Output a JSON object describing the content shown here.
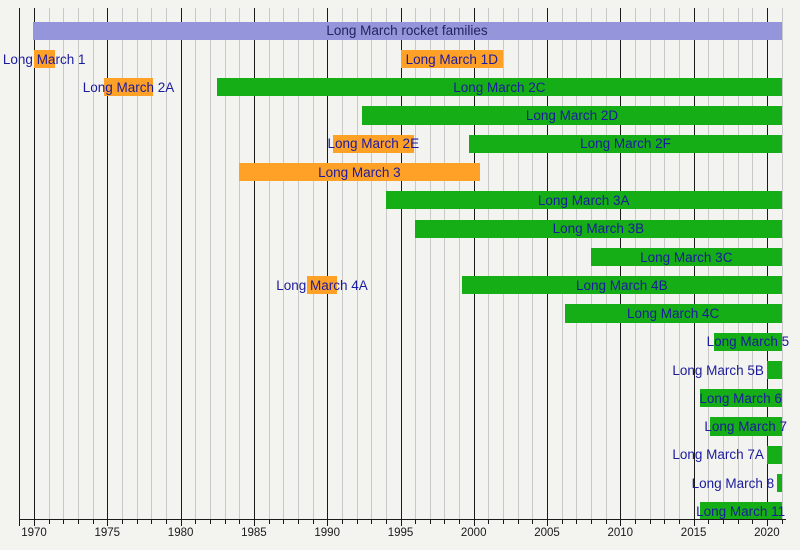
{
  "chart_data": {
    "type": "gantt-timeline",
    "title": "Long March rocket families",
    "x_axis": {
      "min": 1969,
      "max": 2021.3,
      "minor_tick_every": 1,
      "major_tick_every": 5,
      "tick_label_years": [
        1970,
        1975,
        1980,
        1985,
        1990,
        1995,
        2000,
        2005,
        2010,
        2015,
        2020
      ],
      "tick_labels": [
        "1970",
        "1975",
        "1980",
        "1985",
        "1990",
        "1995",
        "2000",
        "2005",
        "2010",
        "2015",
        "2020"
      ]
    },
    "colors": {
      "active": "#16ae16",
      "retired": "#ffa127",
      "header": "#9595db",
      "label_text": "#1b1b9e",
      "axis_text": "#1a1a1a",
      "grid_minor": "#c9c9c9",
      "grid_major": "#1a1a1a",
      "background": "#f3f3ef"
    },
    "header": {
      "label": "Long March rocket families",
      "start": 1969.9,
      "end": 2021,
      "row": 0,
      "status": "header",
      "label_placement": "center"
    },
    "bars": [
      {
        "label": "Long March 1",
        "start": 1970,
        "end": 1971.4,
        "status": "retired",
        "row": 1,
        "label_placement": "center"
      },
      {
        "label": "Long March 1D",
        "start": 1995,
        "end": 2002,
        "status": "retired",
        "row": 1,
        "label_placement": "center"
      },
      {
        "label": "Long March 2A",
        "start": 1974.8,
        "end": 1978.1,
        "status": "retired",
        "row": 2,
        "label_placement": "center"
      },
      {
        "label": "Long March 2C",
        "start": 1982.5,
        "end": 2021,
        "status": "active",
        "row": 2,
        "label_placement": "center"
      },
      {
        "label": "Long March 2D",
        "start": 1992.4,
        "end": 2021,
        "status": "active",
        "row": 3,
        "label_placement": "center"
      },
      {
        "label": "Long March 2E",
        "start": 1990.4,
        "end": 1995.9,
        "status": "retired",
        "row": 4,
        "label_placement": "center"
      },
      {
        "label": "Long March 2F",
        "start": 1999.7,
        "end": 2021,
        "status": "active",
        "row": 4,
        "label_placement": "center"
      },
      {
        "label": "Long March 3",
        "start": 1984,
        "end": 2000.4,
        "status": "retired",
        "row": 5,
        "label_placement": "center"
      },
      {
        "label": "Long March 3A",
        "start": 1994,
        "end": 2021,
        "status": "active",
        "row": 6,
        "label_placement": "center"
      },
      {
        "label": "Long March 3B",
        "start": 1996,
        "end": 2021,
        "status": "active",
        "row": 7,
        "label_placement": "center"
      },
      {
        "label": "Long March 3C",
        "start": 2008,
        "end": 2021,
        "status": "active",
        "row": 8,
        "label_placement": "center"
      },
      {
        "label": "Long March 4A",
        "start": 1988.6,
        "end": 1990.7,
        "status": "retired",
        "row": 9,
        "label_placement": "center"
      },
      {
        "label": "Long March 4B",
        "start": 1999.2,
        "end": 2021,
        "status": "active",
        "row": 9,
        "label_placement": "center"
      },
      {
        "label": "Long March 4C",
        "start": 2006.2,
        "end": 2021,
        "status": "active",
        "row": 10,
        "label_placement": "center"
      },
      {
        "label": "Long March 5",
        "start": 2016.4,
        "end": 2021,
        "status": "active",
        "row": 11,
        "label_placement": "center"
      },
      {
        "label": "Long March 5B",
        "start": 2020,
        "end": 2021,
        "status": "active",
        "row": 12,
        "label_placement": "left-of-bar"
      },
      {
        "label": "Long March 6",
        "start": 2015.4,
        "end": 2021,
        "status": "active",
        "row": 13,
        "label_placement": "center"
      },
      {
        "label": "Long March 7",
        "start": 2016.1,
        "end": 2021,
        "status": "active",
        "row": 14,
        "label_placement": "center"
      },
      {
        "label": "Long March 7A",
        "start": 2020,
        "end": 2021,
        "status": "active",
        "row": 15,
        "label_placement": "left-of-bar"
      },
      {
        "label": "Long March 8",
        "start": 2020.7,
        "end": 2021,
        "status": "active",
        "row": 16,
        "label_placement": "left-of-bar"
      },
      {
        "label": "Long March 11",
        "start": 2015.4,
        "end": 2021,
        "status": "active",
        "row": 17,
        "label_placement": "center"
      }
    ],
    "layout_note": "Gantt timeline; orange = retired family, green = active family, lavender header band spans full period"
  }
}
